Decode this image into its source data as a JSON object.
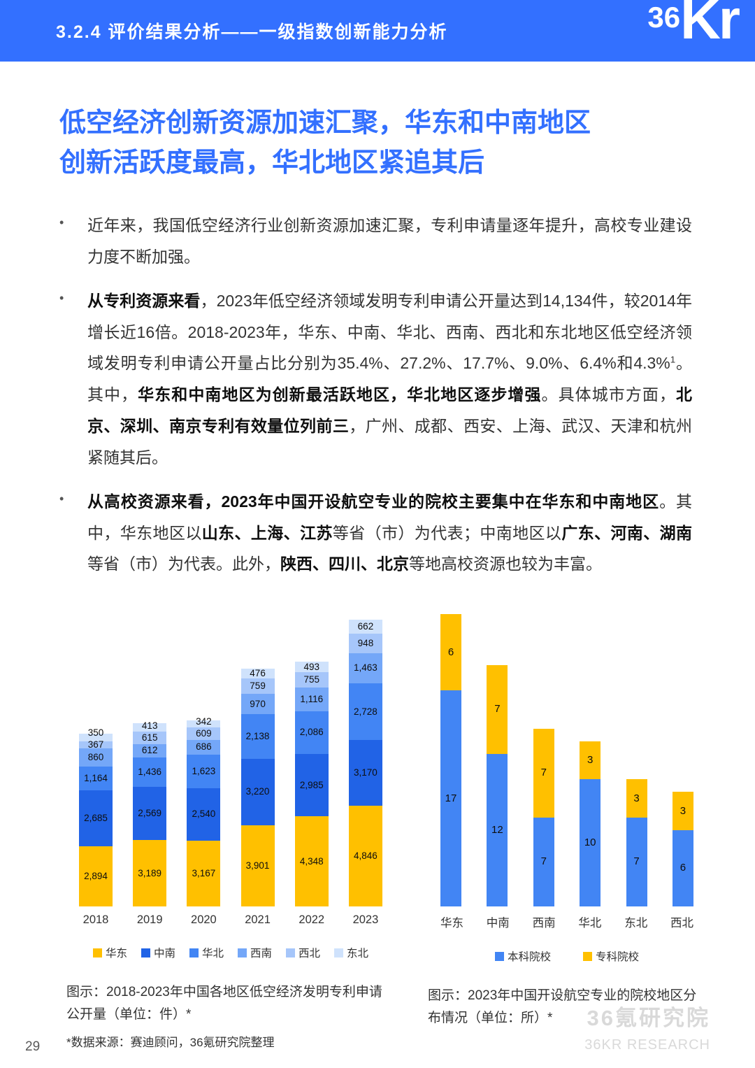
{
  "header": {
    "section_title": "3.2.4 评价结果分析——一级指数创新能力分析",
    "logo_36": "36",
    "logo_kr": "Kr"
  },
  "heading": {
    "line1": "低空经济创新资源加速汇聚，华东和中南地区",
    "line2": "创新活跃度最高，华北地区紧追其后"
  },
  "bullet_char": "•",
  "bullets": [
    {
      "runs": [
        {
          "t": "近年来，我国低空经济行业创新资源加速汇聚，专利申请量逐年提升，高校专业建设力度不断加强。",
          "b": false
        }
      ]
    },
    {
      "runs": [
        {
          "t": "从专利资源来看",
          "b": true
        },
        {
          "t": "，2023年低空经济领域发明专利申请公开量达到14,134件，较2014年增长近16倍。2018-2023年，华东、中南、华北、西南、西北和东北地区低空经济领域发明专利申请公开量占比分别为35.4%、27.2%、17.7%、9.0%、6.4%和4.3%",
          "b": false
        },
        {
          "t": "1",
          "b": false,
          "sup": true
        },
        {
          "t": "。其中，",
          "b": false
        },
        {
          "t": "华东和中南地区为创新最活跃地区，华北地区逐步增强",
          "b": true
        },
        {
          "t": "。具体城市方面，",
          "b": false
        },
        {
          "t": "北京、深圳、南京专利有效量位列前三",
          "b": true
        },
        {
          "t": "，广州、成都、西安、上海、武汉、天津和杭州紧随其后。",
          "b": false
        }
      ]
    },
    {
      "runs": [
        {
          "t": "从高校资源来看，2023年中国开设航空专业的院校主要集中在华东和中南地区",
          "b": true
        },
        {
          "t": "。其中，华东地区以",
          "b": false
        },
        {
          "t": "山东、上海、江苏",
          "b": true
        },
        {
          "t": "等省（市）为代表；中南地区以",
          "b": false
        },
        {
          "t": "广东、河南、湖南",
          "b": true
        },
        {
          "t": "等省（市）为代表。此外，",
          "b": false
        },
        {
          "t": "陕西、四川、北京",
          "b": true
        },
        {
          "t": "等地高校资源也较为丰富。",
          "b": false
        }
      ]
    }
  ],
  "chart_data": [
    {
      "type": "bar",
      "stacked": true,
      "title": "2018-2023年中国各地区低空经济发明专利申请公开量",
      "unit": "件",
      "categories": [
        "2018",
        "2019",
        "2020",
        "2021",
        "2022",
        "2023"
      ],
      "series": [
        {
          "name": "华东",
          "color": "#FFC000",
          "values": [
            2894,
            3189,
            3167,
            3901,
            4348,
            4846
          ]
        },
        {
          "name": "中南",
          "color": "#2163E6",
          "values": [
            2685,
            2569,
            2540,
            3220,
            2985,
            3170
          ]
        },
        {
          "name": "华北",
          "color": "#4285F4",
          "values": [
            1164,
            1436,
            1623,
            2138,
            2086,
            2728
          ]
        },
        {
          "name": "西南",
          "color": "#74A7F8",
          "values": [
            860,
            612,
            686,
            970,
            1116,
            1463
          ]
        },
        {
          "name": "西北",
          "color": "#A6C6FA",
          "values": [
            367,
            615,
            609,
            759,
            755,
            948
          ]
        },
        {
          "name": "东北",
          "color": "#CFE2FC",
          "values": [
            350,
            413,
            342,
            476,
            493,
            662
          ]
        }
      ],
      "legend_position": "bottom",
      "value_labels": true,
      "caption": "图示：2018-2023年中国各地区低空经济发明专利申请公开量（单位：件）*"
    },
    {
      "type": "bar",
      "stacked": true,
      "title": "2023年中国开设航空专业的院校地区分布情况",
      "unit": "所",
      "categories": [
        "华东",
        "中南",
        "西南",
        "华北",
        "东北",
        "西北"
      ],
      "series": [
        {
          "name": "本科院校",
          "color": "#4285F4",
          "values": [
            17,
            12,
            7,
            10,
            7,
            6
          ]
        },
        {
          "name": "专科院校",
          "color": "#FFC000",
          "values": [
            6,
            7,
            7,
            3,
            3,
            3
          ]
        }
      ],
      "legend_position": "bottom",
      "value_labels": true,
      "caption": "图示：2023年中国开设航空专业的院校地区分布情况（单位：所）*"
    }
  ],
  "footnote": "*数据来源：赛迪顾问，36氪研究院整理",
  "page_number": "29",
  "watermark": {
    "line1": "36氪研究院",
    "line2": "36KR RESEARCH"
  },
  "colors": {
    "accent": "#3370FF",
    "yellow": "#FFC000",
    "blue": "#4285F4"
  }
}
